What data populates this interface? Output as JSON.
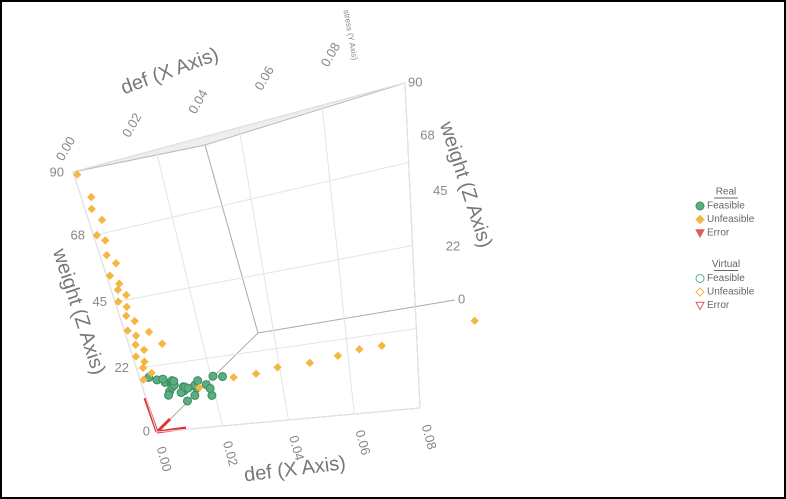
{
  "chart_data": {
    "type": "scatter3d",
    "x_label": "def (X Axis)",
    "y_label": "stress (Y Axis)",
    "z_label": "weight (Z Axis)",
    "xlim": [
      0,
      0.08
    ],
    "ylim": [
      0,
      1
    ],
    "zlim": [
      0,
      90
    ],
    "xticks": [
      {
        "value": 0,
        "label": "0.00"
      },
      0.02,
      0.04,
      0.06,
      0.08
    ],
    "zticks": [
      0,
      22,
      45,
      68,
      90
    ],
    "grid": true,
    "series": [
      {
        "name": "Feasible",
        "marker": "circle",
        "color": "#5aae82",
        "x": [
          0.002,
          0.003,
          0.004,
          0.005,
          0.006,
          0.004,
          0.007,
          0.008,
          0.009,
          0.01,
          0.011,
          0.012,
          0.006,
          0.008,
          0.01,
          0.013,
          0.014,
          0.005,
          0.007,
          0.009,
          0.003,
          0.011,
          0.015,
          0.016,
          0.012,
          0.008
        ],
        "y": [
          0.02,
          0.05,
          0.08,
          0.1,
          0.04,
          0.12,
          0.06,
          0.1,
          0.08,
          0.15,
          0.12,
          0.18,
          0.02,
          0.04,
          0.05,
          0.1,
          0.2,
          0.15,
          0.14,
          0.02,
          0.1,
          0.06,
          0.12,
          0.22,
          0.2,
          0.17
        ],
        "z": [
          18,
          16,
          14,
          13,
          12,
          11,
          15,
          10,
          12,
          9,
          11,
          9,
          17,
          14,
          8,
          13,
          11,
          8,
          10,
          16,
          9,
          12,
          7,
          10,
          7,
          6
        ]
      },
      {
        "name": "Unfeasible",
        "marker": "diamond",
        "color": "#f5b642",
        "x": [
          0.001,
          0.003,
          0.002,
          0.004,
          0.001,
          0.003,
          0.002,
          0.004,
          0.001,
          0.003,
          0.002,
          0.004,
          0.001,
          0.003,
          0.002,
          0.004,
          0.001,
          0.003,
          0.002,
          0.004,
          0.001,
          0.003,
          0.002,
          0.004,
          0.001,
          0.012,
          0.02,
          0.025,
          0.03,
          0.038,
          0.045,
          0.05,
          0.055,
          0.075,
          0.008,
          0.006
        ],
        "y": [
          0,
          0,
          0,
          0,
          0,
          0,
          0,
          0,
          0,
          0,
          0,
          0,
          0,
          0,
          0,
          0,
          0,
          0,
          0,
          0,
          0,
          0,
          0,
          0,
          0,
          0.12,
          0.2,
          0.25,
          0.3,
          0.35,
          0.4,
          0.45,
          0.5,
          0.75,
          0.05,
          0.03
        ],
        "z": [
          89,
          81,
          77,
          73,
          68,
          66,
          61,
          58,
          54,
          51,
          49,
          47,
          45,
          43,
          40,
          38,
          35,
          33,
          30,
          28,
          26,
          24,
          22,
          20,
          18,
          10,
          10,
          9,
          9,
          8,
          8,
          8,
          7,
          5,
          28,
          33
        ]
      }
    ],
    "legend": [
      {
        "title": "Real",
        "items": [
          {
            "label": "Feasible",
            "marker": "circle",
            "color": "#5aae82",
            "filled": true
          },
          {
            "label": "Unfeasible",
            "marker": "diamond",
            "color": "#f5b642",
            "filled": true
          },
          {
            "label": "Error",
            "marker": "triangle",
            "color": "#e05a5a",
            "filled": true
          }
        ]
      },
      {
        "title": "Virtual",
        "items": [
          {
            "label": "Feasible",
            "marker": "circle",
            "color": "#5aae82",
            "filled": false
          },
          {
            "label": "Unfeasible",
            "marker": "diamond",
            "color": "#f5b642",
            "filled": false
          },
          {
            "label": "Error",
            "marker": "triangle",
            "color": "#e05a5a",
            "filled": false
          }
        ]
      }
    ]
  }
}
